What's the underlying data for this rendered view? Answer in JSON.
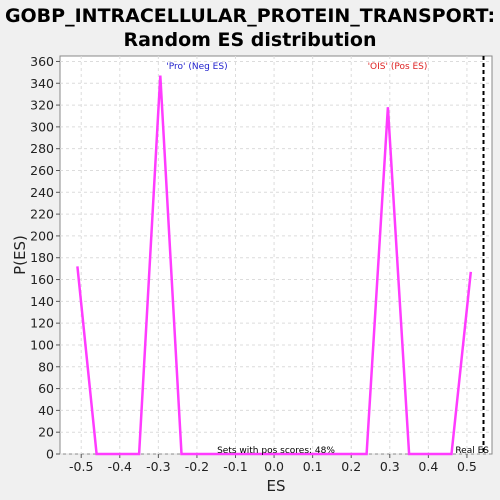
{
  "chart_data": {
    "type": "line",
    "title_line1": "GOBP_INTRACELLULAR_PROTEIN_TRANSPORT:",
    "title_line2": "Random ES distribution",
    "xlabel": "ES",
    "ylabel": "P(ES)",
    "xlim": [
      -0.555,
      0.565
    ],
    "ylim": [
      0,
      365
    ],
    "xticks": [
      "-0.5",
      "-0.4",
      "-0.3",
      "-0.2",
      "-0.1",
      "0.0",
      "0.1",
      "0.2",
      "0.3",
      "0.4",
      "0.5"
    ],
    "yticks": [
      "0",
      "20",
      "40",
      "60",
      "80",
      "100",
      "120",
      "140",
      "160",
      "180",
      "200",
      "220",
      "240",
      "260",
      "280",
      "300",
      "320",
      "340",
      "360"
    ],
    "grid": true,
    "series": [
      {
        "color": "#ff3cff",
        "x": [
          -0.51,
          -0.46,
          -0.35,
          -0.295,
          -0.24,
          0.24,
          0.295,
          0.35,
          0.46,
          0.51
        ],
        "y": [
          172,
          0,
          0,
          347,
          0,
          0,
          318,
          0,
          0,
          167
        ]
      }
    ],
    "real_es": 0.543,
    "annotations": {
      "neg_label": "'Pro' (Neg ES)",
      "neg_color": "#2222cc",
      "pos_label": "'OIS' (Pos ES)",
      "pos_color": "#dd2222",
      "sets_text": "Sets with pos scores: 48%",
      "real_es_label": "Real ES"
    }
  }
}
